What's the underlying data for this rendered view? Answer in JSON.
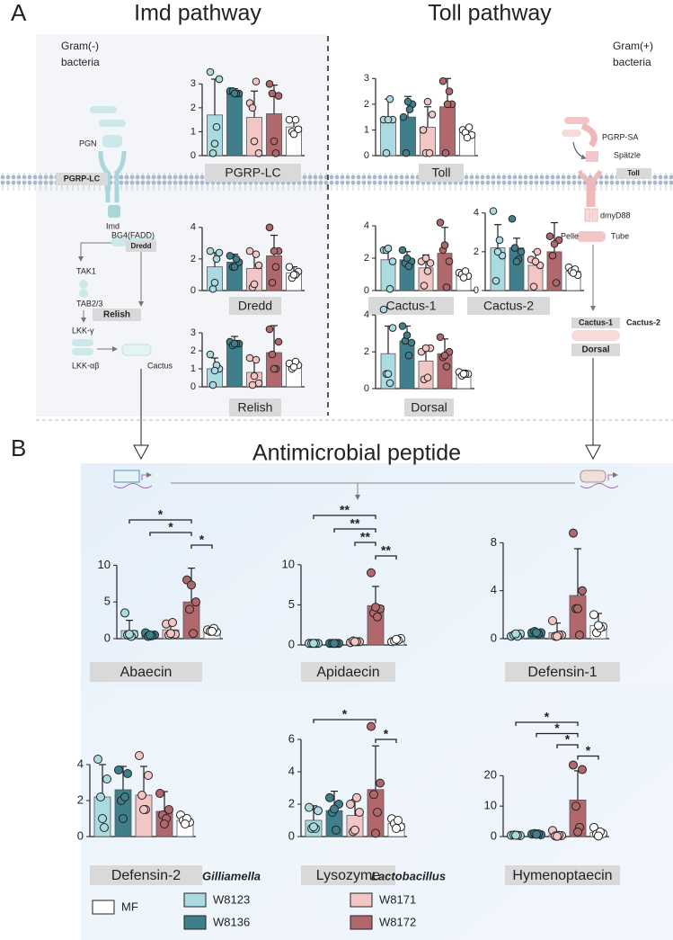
{
  "panels": [
    "A",
    "B"
  ],
  "headings": {
    "imd": "Imd pathway",
    "toll": "Toll pathway",
    "amp": "Antimicrobial peptide"
  },
  "diagram": {
    "gram_neg": [
      "Gram(-)",
      "bacteria"
    ],
    "gram_pos": [
      "Gram(+)",
      "bacteria"
    ],
    "imd_nodes": [
      "PGN",
      "PGRP-LC",
      "Imd",
      "BG4(FADD)",
      "Dredd",
      "TAK1",
      "TAB2/3",
      "LKK-γ",
      "LKK-αβ",
      "Relish",
      "Cactus"
    ],
    "toll_nodes": [
      "PGRP-SA",
      "Spätzle",
      "Toll",
      "dmyD88",
      "Pelle",
      "Tube",
      "Cactus-1",
      "Cactus-2",
      "Dorsal"
    ]
  },
  "groups": [
    {
      "name": "W8123",
      "color": "#a9dbe0"
    },
    {
      "name": "W8136",
      "color": "#3e7f8b"
    },
    {
      "name": "W8171",
      "color": "#f3c6c6"
    },
    {
      "name": "W8172",
      "color": "#b0686d"
    },
    {
      "name": "MF",
      "color": "#ffffff"
    }
  ],
  "legend": {
    "titles": [
      "Gilliamella",
      "Lactobacillus"
    ]
  },
  "chart_data": [
    {
      "type": "bar",
      "title": "PGRP-LC",
      "ylim": [
        0,
        3.5
      ],
      "yticks": [
        0,
        1,
        2,
        3
      ],
      "values": [
        1.7,
        2.65,
        1.6,
        1.75,
        1.2
      ],
      "errors": [
        1.5,
        0.15,
        1.1,
        1.2,
        0.3
      ],
      "points": [
        [
          3.5,
          3.2,
          0.1,
          1.2,
          0.5
        ],
        [
          2.7,
          2.6,
          2.7,
          2.6,
          2.6
        ],
        [
          2.2,
          0.1,
          2.0,
          3.1,
          0.6
        ],
        [
          3.0,
          2.5,
          2.6,
          0.1,
          0.6
        ],
        [
          1.5,
          1.1,
          1.0,
          1.5,
          0.9
        ]
      ]
    },
    {
      "type": "bar",
      "title": "Toll",
      "ylim": [
        0,
        3.5
      ],
      "yticks": [
        0,
        1,
        2,
        3
      ],
      "values": [
        1.3,
        1.5,
        1.1,
        1.9,
        0.9
      ],
      "errors": [
        0.9,
        0.8,
        0.8,
        1.1,
        0.2
      ],
      "points": [
        [
          1.4,
          1.4,
          0.1,
          2.2,
          1.4
        ],
        [
          1.5,
          2.0,
          0.1,
          1.8,
          2.1
        ],
        [
          1.0,
          1.6,
          0.1,
          0.1,
          2.1
        ],
        [
          2.9,
          2.0,
          0.1,
          2.5,
          2.0
        ],
        [
          1.0,
          0.8,
          0.9,
          1.1,
          0.7
        ]
      ]
    },
    {
      "type": "bar",
      "title": "Dredd",
      "ylim": [
        0,
        4.5
      ],
      "yticks": [
        0,
        2,
        4
      ],
      "values": [
        1.5,
        1.8,
        1.4,
        2.2,
        1.1
      ],
      "errors": [
        0.9,
        0.5,
        1.0,
        1.3,
        0.4
      ],
      "points": [
        [
          2.5,
          2.4,
          0.1,
          2.0,
          0.5
        ],
        [
          2.2,
          1.8,
          1.5,
          2.0,
          1.5
        ],
        [
          2.5,
          1.6,
          0.2,
          2.3,
          0.4
        ],
        [
          4.0,
          2.5,
          0.5,
          1.5,
          2.5
        ],
        [
          1.5,
          1.2,
          0.8,
          1.0,
          1.0
        ]
      ]
    },
    {
      "type": "bar",
      "title": "Cactus-1",
      "ylim": [
        0,
        4.5
      ],
      "yticks": [
        0,
        2,
        4
      ],
      "values": [
        1.9,
        1.9,
        1.4,
        2.3,
        1.0
      ],
      "errors": [
        0.6,
        0.5,
        0.8,
        1.6,
        0.2
      ],
      "points": [
        [
          2.5,
          1.8,
          2.5,
          0.1,
          2.6
        ],
        [
          2.5,
          1.8,
          1.7,
          1.5,
          2.0
        ],
        [
          1.8,
          1.7,
          0.3,
          1.2,
          2.0
        ],
        [
          4.2,
          1.8,
          2.5,
          0.2,
          2.8
        ],
        [
          1.1,
          0.9,
          1.0,
          1.2,
          0.8
        ]
      ]
    },
    {
      "type": "bar",
      "title": "Cactus-2",
      "ylim": [
        0,
        4.5
      ],
      "yticks": [
        0,
        2,
        4
      ],
      "values": [
        2.2,
        2.2,
        1.3,
        2.0,
        1.0
      ],
      "errors": [
        1.2,
        0.5,
        0.7,
        1.5,
        0.2
      ],
      "points": [
        [
          4.1,
          1.8,
          0.5,
          2.6,
          2.0
        ],
        [
          3.7,
          2.0,
          2.2,
          1.6,
          1.5
        ],
        [
          1.6,
          1.3,
          0.2,
          2.0,
          1.5
        ],
        [
          2.8,
          2.6,
          1.8,
          0.4,
          2.4
        ],
        [
          1.2,
          0.8,
          1.0,
          1.1,
          0.9
        ]
      ]
    },
    {
      "type": "bar",
      "title": "Relish",
      "ylim": [
        0,
        3.5
      ],
      "yticks": [
        0,
        1,
        2,
        3
      ],
      "values": [
        1.0,
        2.4,
        0.8,
        1.9,
        1.2
      ],
      "errors": [
        0.6,
        0.4,
        0.7,
        1.5,
        0.2
      ],
      "points": [
        [
          1.8,
          1.0,
          0.1,
          1.2,
          0.9
        ],
        [
          2.5,
          2.4,
          2.3,
          2.4,
          2.4
        ],
        [
          1.6,
          0.2,
          0.1,
          1.5,
          0.6
        ],
        [
          3.2,
          2.5,
          1.8,
          1.0,
          1.0
        ],
        [
          1.3,
          1.2,
          1.0,
          1.4,
          1.1
        ]
      ]
    },
    {
      "type": "bar",
      "title": "Dorsal",
      "ylim": [
        0,
        4.5
      ],
      "yticks": [
        0,
        2,
        4
      ],
      "values": [
        1.9,
        2.6,
        1.5,
        1.9,
        0.8
      ],
      "errors": [
        1.5,
        0.8,
        0.8,
        0.8,
        0.2
      ],
      "points": [
        [
          4.3,
          3.3,
          0.8,
          0.3,
          0.8
        ],
        [
          3.4,
          2.5,
          2.6,
          1.8,
          2.9
        ],
        [
          2.0,
          2.2,
          0.5,
          0.6,
          2.2
        ],
        [
          2.8,
          2.0,
          1.7,
          1.2,
          1.8
        ],
        [
          0.9,
          0.8,
          0.7,
          0.8,
          0.8
        ]
      ]
    },
    {
      "type": "bar",
      "title": "Abaecin",
      "ylim": [
        0,
        12
      ],
      "yticks": [
        0,
        5,
        10
      ],
      "values": [
        1.1,
        0.5,
        1.2,
        5.0,
        1.1
      ],
      "errors": [
        1.4,
        0.3,
        0.9,
        4.6,
        0.3
      ],
      "points": [
        [
          3.5,
          0.6,
          0.5,
          0.3,
          0.6
        ],
        [
          0.8,
          0.5,
          0.3,
          0.4,
          0.5
        ],
        [
          2.0,
          0.6,
          0.5,
          2.2,
          0.7
        ],
        [
          8.0,
          5.0,
          4.0,
          0.7,
          7.3
        ],
        [
          1.2,
          0.9,
          1.0,
          1.4,
          1.0
        ]
      ],
      "significance": [
        {
          "from": 0,
          "to": 3,
          "label": "*"
        },
        {
          "from": 1,
          "to": 3,
          "label": "*"
        },
        {
          "from": 3,
          "to": 4,
          "label": "*"
        }
      ]
    },
    {
      "type": "bar",
      "title": "Apidaecin",
      "ylim": [
        0,
        12
      ],
      "yticks": [
        0,
        5,
        10
      ],
      "values": [
        0.2,
        0.2,
        0.4,
        4.9,
        0.6
      ],
      "errors": [
        0.1,
        0.1,
        0.2,
        2.4,
        0.3
      ],
      "points": [
        [
          0.2,
          0.2,
          0.2,
          0.2,
          0.2
        ],
        [
          0.2,
          0.2,
          0.2,
          0.2,
          0.2
        ],
        [
          0.3,
          0.4,
          0.5,
          0.4,
          0.4
        ],
        [
          9.0,
          4.5,
          4.0,
          3.5,
          4.7
        ],
        [
          0.4,
          0.8,
          0.5,
          0.6,
          0.7
        ]
      ],
      "significance": [
        {
          "from": 0,
          "to": 3,
          "label": "**"
        },
        {
          "from": 1,
          "to": 3,
          "label": "**"
        },
        {
          "from": 2,
          "to": 3,
          "label": "**"
        },
        {
          "from": 3,
          "to": 4,
          "label": "**"
        }
      ]
    },
    {
      "type": "bar",
      "title": "Defensin-1",
      "ylim": [
        0,
        9
      ],
      "yticks": [
        0,
        4,
        8
      ],
      "values": [
        0.3,
        0.5,
        0.5,
        3.6,
        1.1
      ],
      "errors": [
        0.2,
        0.2,
        0.8,
        3.9,
        1.0
      ],
      "points": [
        [
          0.2,
          0.4,
          0.3,
          0.2,
          0.4
        ],
        [
          0.5,
          0.5,
          0.6,
          0.4,
          0.5
        ],
        [
          1.5,
          0.3,
          0.2,
          0.3,
          0.2
        ],
        [
          8.8,
          4.0,
          2.5,
          0.3,
          2.5
        ],
        [
          2.0,
          1.0,
          0.5,
          0.9,
          1.1
        ]
      ]
    },
    {
      "type": "bar",
      "title": "Defensin-2",
      "ylim": [
        0,
        4.5
      ],
      "yticks": [
        0,
        2,
        4
      ],
      "values": [
        2.2,
        2.6,
        2.3,
        1.4,
        0.9
      ],
      "errors": [
        1.8,
        1.3,
        1.6,
        1.1,
        0.3
      ],
      "points": [
        [
          4.3,
          3.2,
          2.2,
          0.5,
          1.0
        ],
        [
          3.7,
          3.5,
          2.0,
          2.2,
          1.0
        ],
        [
          4.5,
          3.4,
          2.3,
          1.5,
          1.5
        ],
        [
          2.4,
          1.5,
          1.2,
          1.0,
          0.7
        ],
        [
          1.2,
          0.8,
          0.9,
          1.0,
          0.7
        ]
      ]
    },
    {
      "type": "bar",
      "title": "Lysozyme",
      "ylim": [
        0,
        7.5
      ],
      "yticks": [
        0,
        2,
        4,
        6
      ],
      "values": [
        1.0,
        1.6,
        1.3,
        2.9,
        0.8
      ],
      "errors": [
        0.9,
        1.2,
        1.0,
        2.7,
        0.3
      ],
      "points": [
        [
          1.8,
          1.6,
          0.5,
          0.5,
          0.6
        ],
        [
          2.4,
          2.0,
          1.5,
          0.4,
          1.7
        ],
        [
          2.0,
          1.5,
          0.3,
          2.4,
          0.4
        ],
        [
          6.8,
          3.3,
          2.6,
          1.5,
          0.2
        ],
        [
          1.1,
          0.6,
          0.8,
          1.0,
          0.5
        ]
      ],
      "significance": [
        {
          "from": 0,
          "to": 3,
          "label": "*"
        },
        {
          "from": 3,
          "to": 4,
          "label": "*"
        }
      ]
    },
    {
      "type": "bar",
      "title": "Hymenoptaecin",
      "ylim": [
        0,
        26
      ],
      "yticks": [
        0,
        10,
        20
      ],
      "values": [
        0.4,
        0.8,
        0.6,
        12,
        1.3
      ],
      "errors": [
        0.3,
        0.3,
        1.0,
        9.6,
        1.3
      ],
      "points": [
        [
          0.4,
          0.3,
          0.5,
          0.4,
          0.4
        ],
        [
          0.8,
          0.6,
          1.0,
          0.9,
          0.7
        ],
        [
          2.0,
          0.3,
          0.2,
          0.4,
          0.1
        ],
        [
          23.5,
          22.0,
          10.0,
          3.0,
          1.5
        ],
        [
          3.0,
          1.0,
          0.8,
          1.5,
          0.2
        ]
      ],
      "significance": [
        {
          "from": 0,
          "to": 3,
          "label": "*"
        },
        {
          "from": 1,
          "to": 3,
          "label": "*"
        },
        {
          "from": 2,
          "to": 3,
          "label": "*"
        },
        {
          "from": 3,
          "to": 4,
          "label": "*"
        }
      ]
    }
  ]
}
